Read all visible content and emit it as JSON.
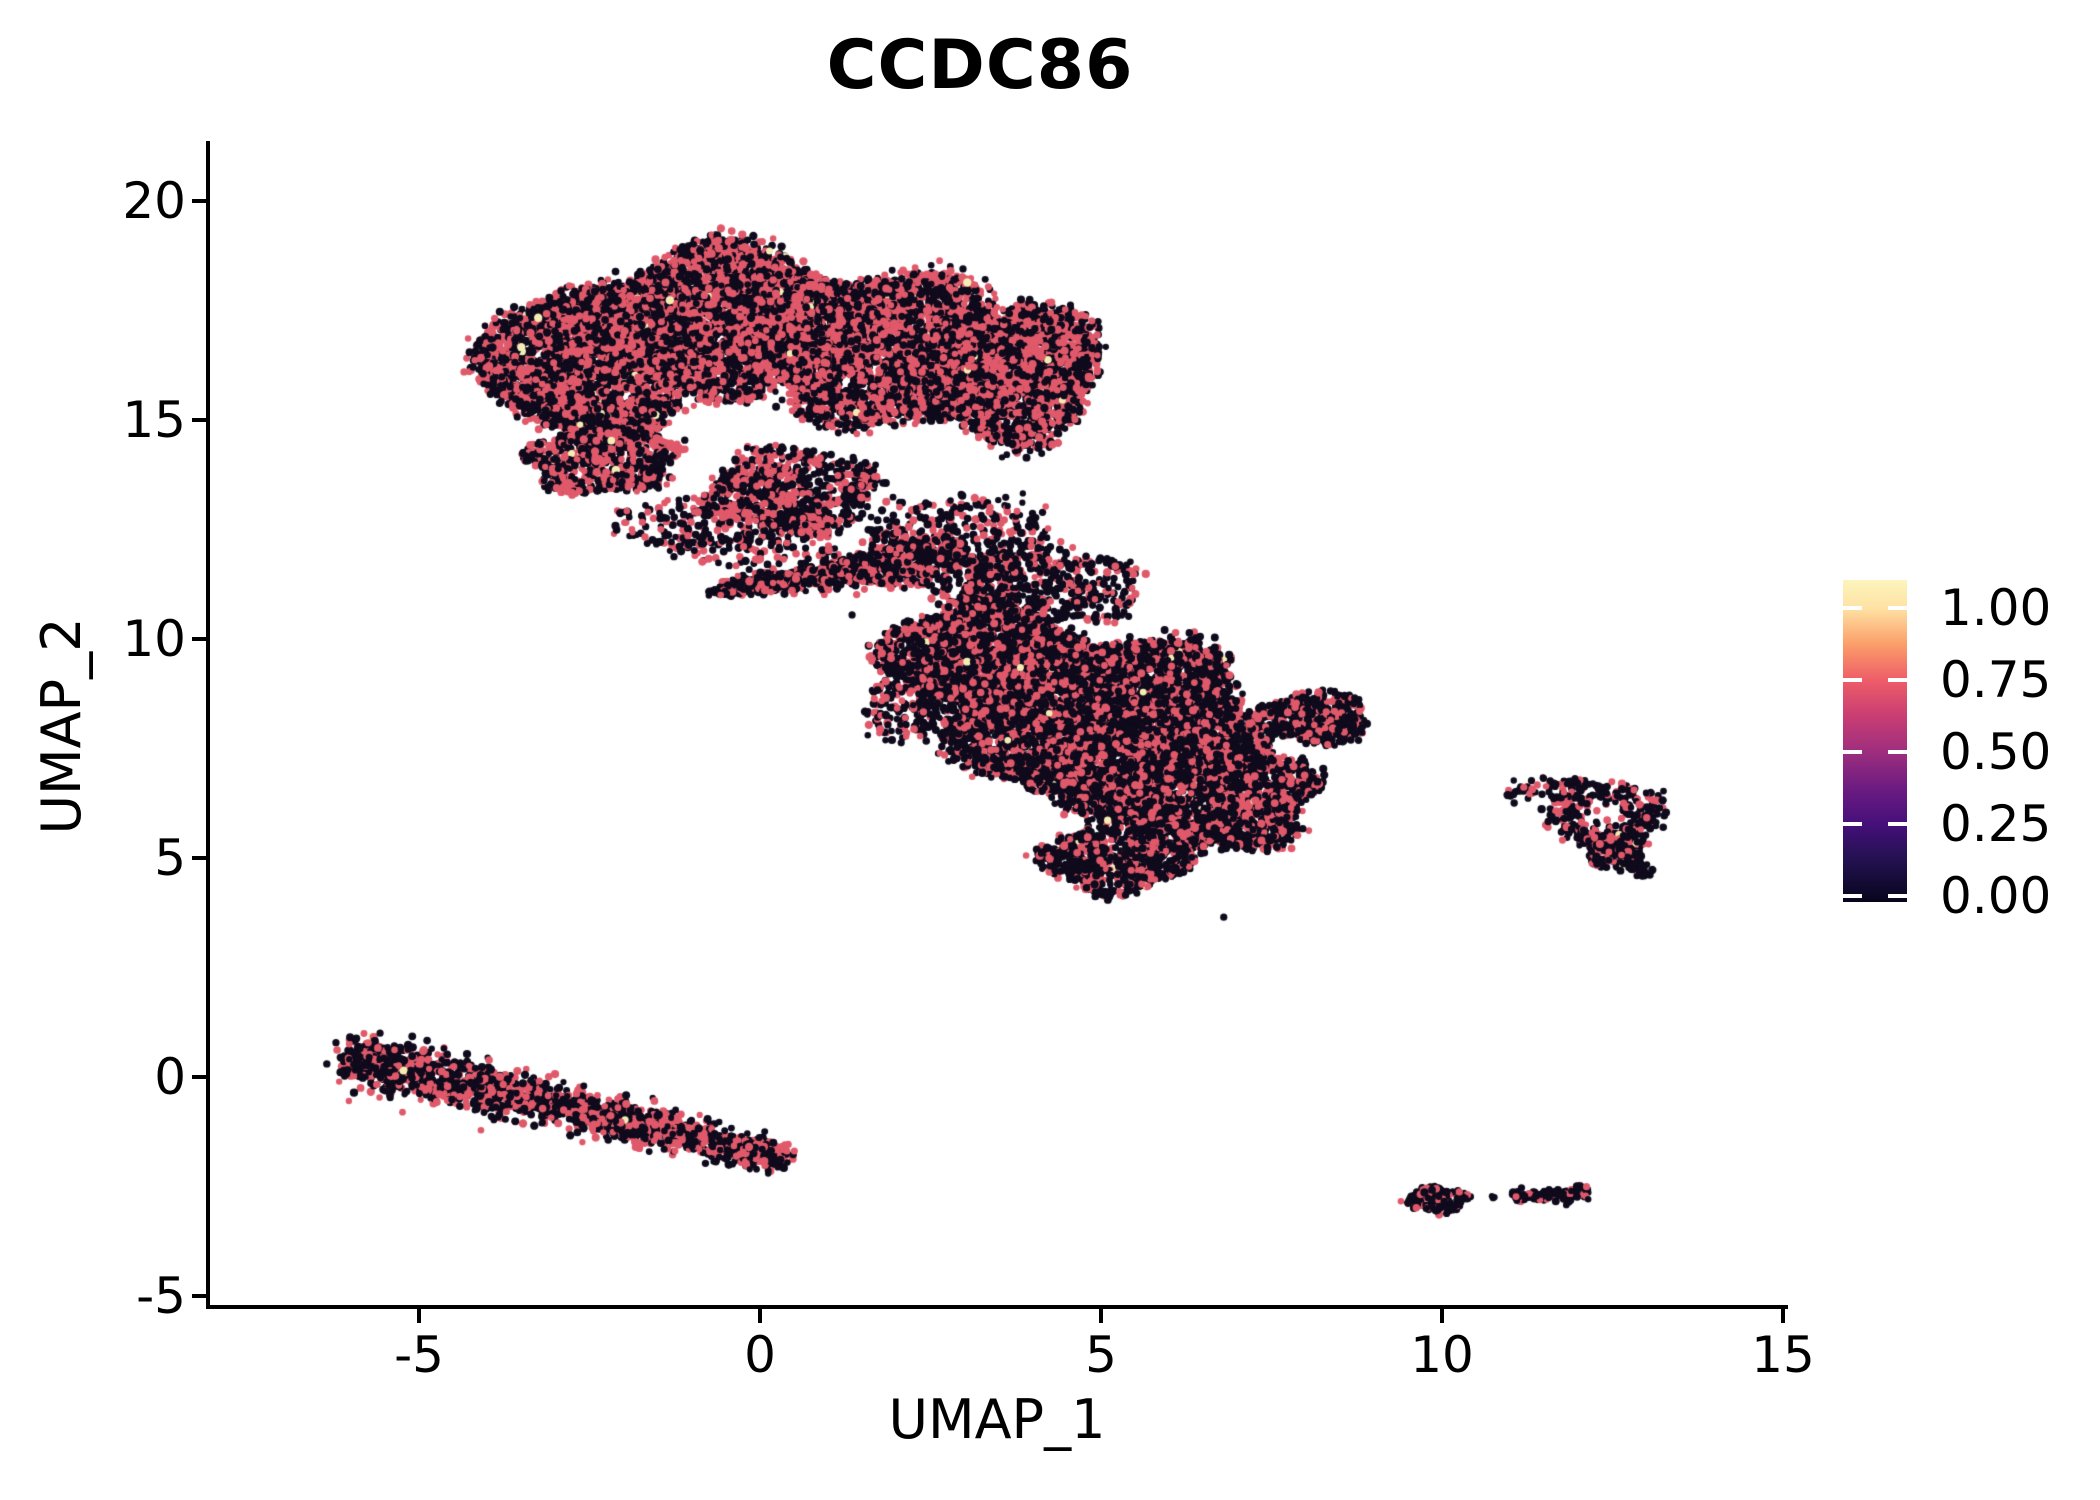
{
  "title": "CCDC86",
  "axes": {
    "x": {
      "label": "UMAP_1",
      "ticks": [
        -5,
        0,
        5,
        10,
        15
      ]
    },
    "y": {
      "label": "UMAP_2",
      "ticks": [
        -5,
        0,
        5,
        10,
        15,
        20
      ]
    }
  },
  "colorbar": {
    "labels": [
      "0.00",
      "0.25",
      "0.50",
      "0.75",
      "1.00"
    ],
    "values": [
      0,
      0.25,
      0.5,
      0.75,
      1
    ],
    "gradient_stops": [
      {
        "p": 0.0,
        "c": "#070419"
      },
      {
        "p": 0.019,
        "c": "#0b0724"
      },
      {
        "p": 0.13,
        "c": "#231150"
      },
      {
        "p": 0.242,
        "c": "#45107a"
      },
      {
        "p": 0.35,
        "c": "#6b1b81"
      },
      {
        "p": 0.466,
        "c": "#9e2e7e"
      },
      {
        "p": 0.58,
        "c": "#ca3e72"
      },
      {
        "p": 0.689,
        "c": "#ee5d68"
      },
      {
        "p": 0.8,
        "c": "#fb9e69"
      },
      {
        "p": 0.913,
        "c": "#fee2a4"
      },
      {
        "p": 1.0,
        "c": "#fcf5bd"
      }
    ]
  },
  "chart_data": {
    "type": "scatter",
    "title": "CCDC86",
    "xlabel": "UMAP_1",
    "ylabel": "UMAP_2",
    "xlim": [
      -8.1,
      15.1
    ],
    "ylim": [
      -5.3,
      21.4
    ],
    "x_ticks": [
      -5,
      0,
      5,
      10,
      15
    ],
    "y_ticks": [
      -5,
      0,
      5,
      10,
      15,
      20
    ],
    "legend_ticks": [
      0,
      0.25,
      0.5,
      0.75,
      1
    ],
    "grid": false,
    "point_colors": {
      "zero": "#0f0b1c",
      "mid": "#e0596a",
      "high": "#f3edb5"
    },
    "clusters": [
      {
        "kind": "blob",
        "cx": -2.5,
        "cy": 16.3,
        "rx": 1.5,
        "ry": 1.8,
        "n": 3000,
        "pink": 0.46,
        "cream": 0.008
      },
      {
        "kind": "blob",
        "cx": -0.5,
        "cy": 17.3,
        "rx": 1.8,
        "ry": 1.7,
        "n": 3600,
        "pink": 0.46,
        "cream": 0.008
      },
      {
        "kind": "blob",
        "cx": 1.9,
        "cy": 16.6,
        "rx": 1.7,
        "ry": 1.8,
        "n": 2900,
        "pink": 0.46,
        "cream": 0.006
      },
      {
        "kind": "blob",
        "cx": 3.7,
        "cy": 16.1,
        "rx": 1.3,
        "ry": 1.6,
        "n": 2100,
        "pink": 0.45,
        "cream": 0.004
      },
      {
        "kind": "blob",
        "cx": -2.3,
        "cy": 14.1,
        "rx": 1.1,
        "ry": 0.8,
        "n": 650,
        "pink": 0.42,
        "cream": 0.004
      },
      {
        "kind": "blob",
        "cx": 0.5,
        "cy": 13.4,
        "rx": 1.25,
        "ry": 1.0,
        "n": 650,
        "pink": 0.4,
        "cream": 0.002
      },
      {
        "kind": "band",
        "cx": 1.2,
        "cy": 11.55,
        "angle": 14,
        "len": 1.9,
        "w": 0.28,
        "taper": 0.75,
        "taperDir": -1,
        "n": 950,
        "pink": 0.4,
        "cream": 0.002
      },
      {
        "kind": "blob",
        "cx": 2.9,
        "cy": 12.1,
        "rx": 1.5,
        "ry": 1.2,
        "n": 480,
        "pink": 0.35,
        "cream": 0.002
      },
      {
        "kind": "blob",
        "cx": -0.4,
        "cy": 12.6,
        "rx": 1.6,
        "ry": 0.9,
        "n": 380,
        "pink": 0.4,
        "cream": 0.002
      },
      {
        "kind": "blob",
        "cx": 5.1,
        "cy": 8.1,
        "rx": 2.15,
        "ry": 1.95,
        "n": 5200,
        "pink": 0.32,
        "cream": 0.005
      },
      {
        "kind": "blob",
        "cx": 3.3,
        "cy": 9.6,
        "rx": 1.5,
        "ry": 1.3,
        "n": 1900,
        "pink": 0.33,
        "cream": 0.004
      },
      {
        "kind": "blob",
        "cx": 6.6,
        "cy": 6.4,
        "rx": 1.5,
        "ry": 1.3,
        "n": 1900,
        "pink": 0.32,
        "cream": 0.005
      },
      {
        "kind": "blob",
        "cx": 8.1,
        "cy": 8.2,
        "rx": 0.85,
        "ry": 0.6,
        "n": 450,
        "pink": 0.3,
        "cream": 0.002
      },
      {
        "kind": "blob",
        "cx": 5.2,
        "cy": 5.0,
        "rx": 1.05,
        "ry": 0.8,
        "n": 800,
        "pink": 0.3,
        "cream": 0.006
      },
      {
        "kind": "blob",
        "cx": 4.2,
        "cy": 11.15,
        "rx": 1.4,
        "ry": 0.85,
        "n": 430,
        "pink": 0.3,
        "cream": 0.002
      },
      {
        "kind": "blob",
        "cx": 2.5,
        "cy": 8.6,
        "rx": 0.9,
        "ry": 1.1,
        "n": 350,
        "pink": 0.3,
        "cream": 0.002
      },
      {
        "kind": "band",
        "cx": -2.85,
        "cy": -0.7,
        "angle": -20,
        "len": 3.4,
        "w": 0.3,
        "taper": 0.5,
        "taperDir": 1,
        "n": 1950,
        "pink": 0.42,
        "cream": 0.002
      },
      {
        "kind": "ring",
        "cx": 12.42,
        "cy": 6.0,
        "R": 0.55,
        "t": 0.14,
        "ax": 1.15,
        "ay": 1.0,
        "n": 300,
        "pink": 0.28,
        "cream": 0.002
      },
      {
        "kind": "blob",
        "cx": 12.55,
        "cy": 5.15,
        "rx": 0.42,
        "ry": 0.4,
        "n": 150,
        "pink": 0.28,
        "cream": 0.01
      },
      {
        "kind": "band",
        "cx": 11.5,
        "cy": 6.6,
        "angle": 12,
        "len": 0.55,
        "w": 0.12,
        "taper": 0,
        "taperDir": 1,
        "n": 60,
        "pink": 0.25,
        "cream": 0
      },
      {
        "kind": "band",
        "cx": 12.8,
        "cy": 4.95,
        "angle": -72,
        "len": 0.4,
        "w": 0.1,
        "taper": 0,
        "taperDir": 1,
        "n": 60,
        "pink": 0.2,
        "cream": 0.02
      },
      {
        "kind": "blob",
        "cx": 9.9,
        "cy": -2.8,
        "rx": 0.45,
        "ry": 0.32,
        "n": 130,
        "pink": 0.22,
        "cream": 0
      },
      {
        "kind": "band",
        "cx": 11.6,
        "cy": -2.68,
        "angle": 4,
        "len": 0.55,
        "w": 0.08,
        "taper": 0,
        "taperDir": 1,
        "n": 100,
        "pink": 0.22,
        "cream": 0
      },
      {
        "kind": "blob",
        "cx": 10.75,
        "cy": -2.72,
        "rx": 0.06,
        "ry": 0.05,
        "n": 3,
        "pink": 0,
        "cream": 0
      }
    ],
    "outliers": [
      {
        "x": 6.8,
        "y": 3.65,
        "c": "zero"
      },
      {
        "x": 1.35,
        "y": 10.55,
        "c": "zero"
      },
      {
        "x": 11.05,
        "y": 6.45,
        "c": "zero"
      }
    ]
  }
}
